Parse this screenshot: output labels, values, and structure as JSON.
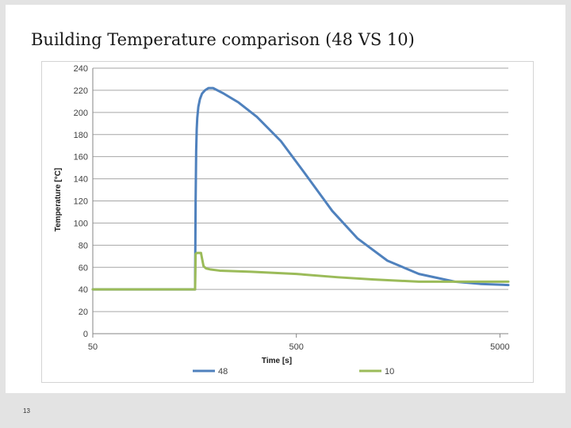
{
  "slide": {
    "title": "Building Temperature comparison (48 VS 10)",
    "page_number": "13"
  },
  "colors": {
    "series_48": "#4f81bd",
    "series_10": "#9bbb59",
    "grid": "#a6a6a6",
    "tick_text": "#404040"
  },
  "chart_data": {
    "type": "line",
    "title": "",
    "xlabel": "Time [s]",
    "ylabel": "Temperature [°C]",
    "xscale": "log",
    "xlim": [
      50,
      5500
    ],
    "ylim": [
      0,
      240
    ],
    "xticks": [
      50,
      500,
      5000
    ],
    "yticks": [
      0,
      20,
      40,
      60,
      80,
      100,
      120,
      140,
      160,
      180,
      200,
      220,
      240
    ],
    "grid": "horizontal",
    "legend_position": "bottom",
    "series": [
      {
        "name": "48",
        "color": "#4f81bd",
        "x": [
          50,
          155,
          159,
          160,
          161,
          162,
          163,
          165,
          168,
          172,
          178,
          185,
          195,
          220,
          260,
          320,
          420,
          550,
          750,
          1000,
          1400,
          2000,
          3000,
          4000,
          5500
        ],
        "y": [
          40,
          40,
          40,
          120,
          165,
          185,
          195,
          205,
          212,
          217,
          220,
          222,
          222,
          217,
          209,
          196,
          174,
          145,
          111,
          86,
          66,
          54,
          47,
          45,
          44
        ]
      },
      {
        "name": "10",
        "color": "#9bbb59",
        "x": [
          50,
          155,
          159,
          160,
          162,
          170,
          172,
          175,
          180,
          190,
          210,
          300,
          500,
          800,
          1200,
          2000,
          3500,
          5500
        ],
        "y": [
          40,
          40,
          40,
          72,
          73,
          73,
          68,
          61,
          59,
          58,
          57,
          56,
          54,
          51,
          49,
          47,
          47,
          47
        ]
      }
    ]
  }
}
